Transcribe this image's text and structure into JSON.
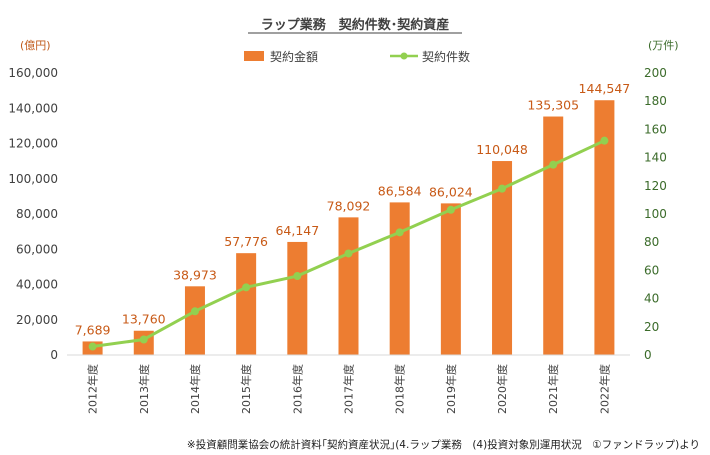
{
  "chart_data": {
    "type": "bar",
    "title": "ラップ業務　契約件数･契約資産",
    "categories": [
      "2012年度",
      "2013年度",
      "2014年度",
      "2015年度",
      "2016年度",
      "2017年度",
      "2018年度",
      "2019年度",
      "2020年度",
      "2021年度",
      "2022年度"
    ],
    "series": [
      {
        "name": "契約金額",
        "type": "bar",
        "axis": "left",
        "color": "#ed7d31",
        "values": [
          7689,
          13760,
          38973,
          57776,
          64147,
          78092,
          86584,
          86024,
          110048,
          135305,
          144547
        ]
      },
      {
        "name": "契約件数",
        "type": "line",
        "axis": "right",
        "color": "#92d050",
        "values": [
          6,
          11,
          31,
          48,
          56,
          72,
          87,
          103,
          118,
          135,
          152
        ]
      }
    ],
    "data_labels": [
      "7,689",
      "13,760",
      "38,973",
      "57,776",
      "64,147",
      "78,092",
      "86,584",
      "86,024",
      "110,048",
      "135,305",
      "144,547"
    ],
    "y_left": {
      "unit": "(億円)",
      "ylim": [
        0,
        160000
      ],
      "ticks": [
        "0",
        "20,000",
        "40,000",
        "60,000",
        "80,000",
        "100,000",
        "120,000",
        "140,000",
        "160,000"
      ]
    },
    "y_right": {
      "unit": "(万件)",
      "ylim": [
        0,
        200
      ],
      "ticks": [
        "0",
        "20",
        "40",
        "60",
        "80",
        "100",
        "120",
        "140",
        "160",
        "180",
        "200"
      ]
    },
    "legend_position": "top-center",
    "grid": false
  },
  "footnote": "※投資顧問業協会の統計資料｢契約資産状況｣(4.ラップ業務　(4)投資対象別運用状況　①ファンドラップ)より"
}
